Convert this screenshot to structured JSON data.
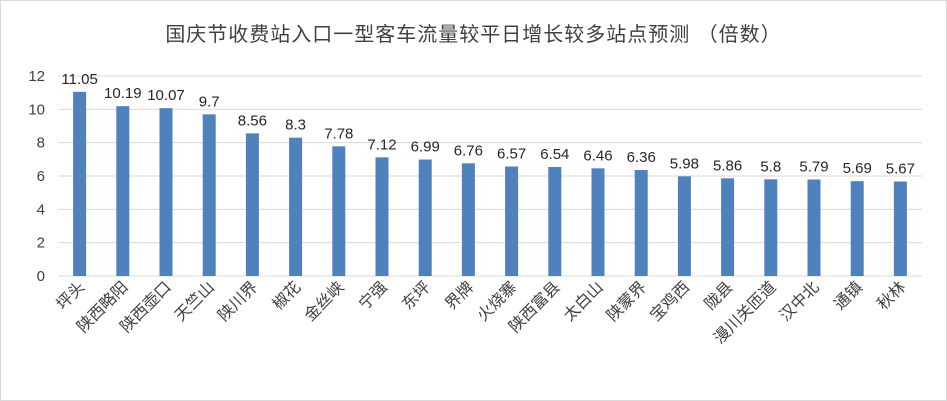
{
  "chart_data": {
    "type": "bar",
    "title": "国庆节收费站入口一型客车流量较平日增长较多站点预测 （倍数）",
    "categories": [
      "坪头",
      "陕西略阳",
      "陕西壶口",
      "天竺山",
      "陕川界",
      "椒花",
      "金丝峡",
      "宁强",
      "东坪",
      "界牌",
      "火烧寨",
      "陕西富县",
      "太白山",
      "陕蒙界",
      "宝鸡西",
      "陇县",
      "漫川关匝道",
      "汉中北",
      "通镇",
      "秋林"
    ],
    "values": [
      11.05,
      10.19,
      10.07,
      9.7,
      8.56,
      8.3,
      7.78,
      7.12,
      6.99,
      6.76,
      6.57,
      6.54,
      6.46,
      6.36,
      5.98,
      5.86,
      5.8,
      5.79,
      5.69,
      5.67
    ],
    "value_labels": [
      "11.05",
      "10.19",
      "10.07",
      "9.7",
      "8.56",
      "8.3",
      "7.78",
      "7.12",
      "6.99",
      "6.76",
      "6.57",
      "6.54",
      "6.46",
      "6.36",
      "5.98",
      "5.86",
      "5.8",
      "5.79",
      "5.69",
      "5.67"
    ],
    "xlabel": "",
    "ylabel": "",
    "ylim": [
      0,
      12
    ],
    "yticks": [
      "0",
      "2",
      "4",
      "6",
      "8",
      "10",
      "12"
    ],
    "grid": true,
    "legend": "none",
    "bar_color": "#4f81bd",
    "grid_color": "#d9d9d9"
  }
}
